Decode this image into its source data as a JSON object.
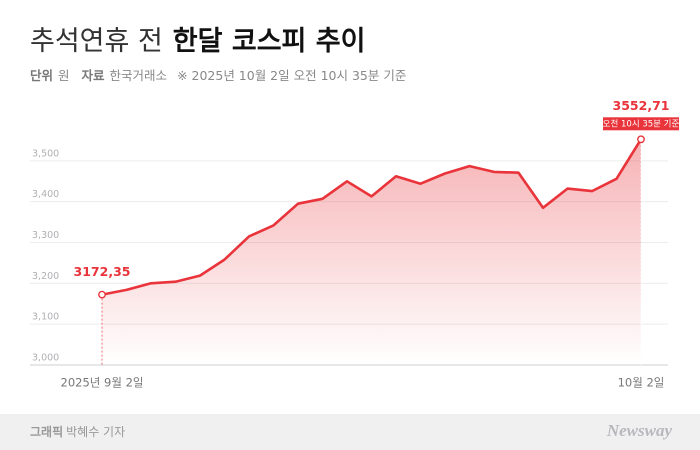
{
  "chart_data": {
    "type": "line",
    "title": "추석연휴 전",
    "title_bold": "한달 코스피 추이",
    "unit_label": "단위",
    "unit": "원",
    "source_label": "자료",
    "source": "한국거래소",
    "note": "※ 2025년 10월 2일 오전 10시 35분 기준",
    "annotation": "오전 10시 35분 기준",
    "credit_label": "그래픽",
    "credit": "박혜수 기자",
    "brand": "Newsway",
    "categories": [
      "2025년 9월 2일",
      null,
      null,
      null,
      null,
      null,
      null,
      null,
      null,
      null,
      null,
      null,
      null,
      null,
      null,
      null,
      null,
      null,
      null,
      null,
      null,
      null,
      "10월 2일"
    ],
    "series": [
      {
        "name": "코스피",
        "color": "#e8343a",
        "values": [
          3172.35,
          3184,
          3200,
          3204,
          3219,
          3258,
          3315,
          3342,
          3395,
          3407,
          3450,
          3413,
          3462,
          3444,
          3469,
          3487,
          3473,
          3471,
          3385,
          3432,
          3426,
          3456,
          3552.71
        ],
        "value_labels": [
          "3172,35",
          null,
          null,
          null,
          null,
          null,
          null,
          null,
          null,
          null,
          null,
          null,
          null,
          null,
          null,
          null,
          null,
          null,
          null,
          null,
          null,
          null,
          "3552,71"
        ]
      }
    ],
    "ylim": [
      3000,
      3600
    ],
    "yticks": [
      {
        "value": 3000,
        "label": "3,000"
      },
      {
        "value": 3100,
        "label": "3,100"
      },
      {
        "value": 3200,
        "label": "3,200"
      },
      {
        "value": 3300,
        "label": "3,300"
      },
      {
        "value": 3400,
        "label": "3,400"
      },
      {
        "value": 3500,
        "label": "3,500"
      }
    ],
    "grid": true
  }
}
